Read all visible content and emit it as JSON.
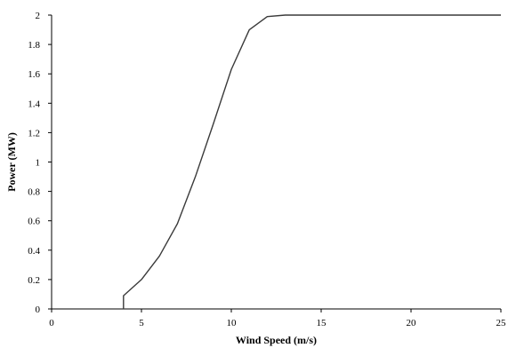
{
  "chart_data": {
    "type": "line",
    "xlabel": "Wind Speed (m/s)",
    "ylabel": "Power (MW)",
    "xlim": [
      0,
      25
    ],
    "ylim": [
      0,
      2
    ],
    "x_ticks": [
      0,
      5,
      10,
      15,
      20,
      25
    ],
    "y_ticks": [
      0,
      0.2,
      0.4,
      0.6,
      0.8,
      1,
      1.2,
      1.4,
      1.6,
      1.8,
      2
    ],
    "grid": false,
    "legend": "none",
    "line_color": "#3a3a3a",
    "series": [
      {
        "x": [
          4,
          4,
          5,
          6,
          7,
          8,
          9,
          10,
          11,
          12,
          13,
          14,
          15,
          16,
          17,
          18,
          19,
          20,
          21,
          22,
          23,
          24,
          25
        ],
        "y": [
          0,
          0.09,
          0.2,
          0.36,
          0.58,
          0.9,
          1.26,
          1.63,
          1.9,
          1.99,
          2,
          2,
          2,
          2,
          2,
          2,
          2,
          2,
          2,
          2,
          2,
          2,
          2
        ]
      }
    ]
  }
}
